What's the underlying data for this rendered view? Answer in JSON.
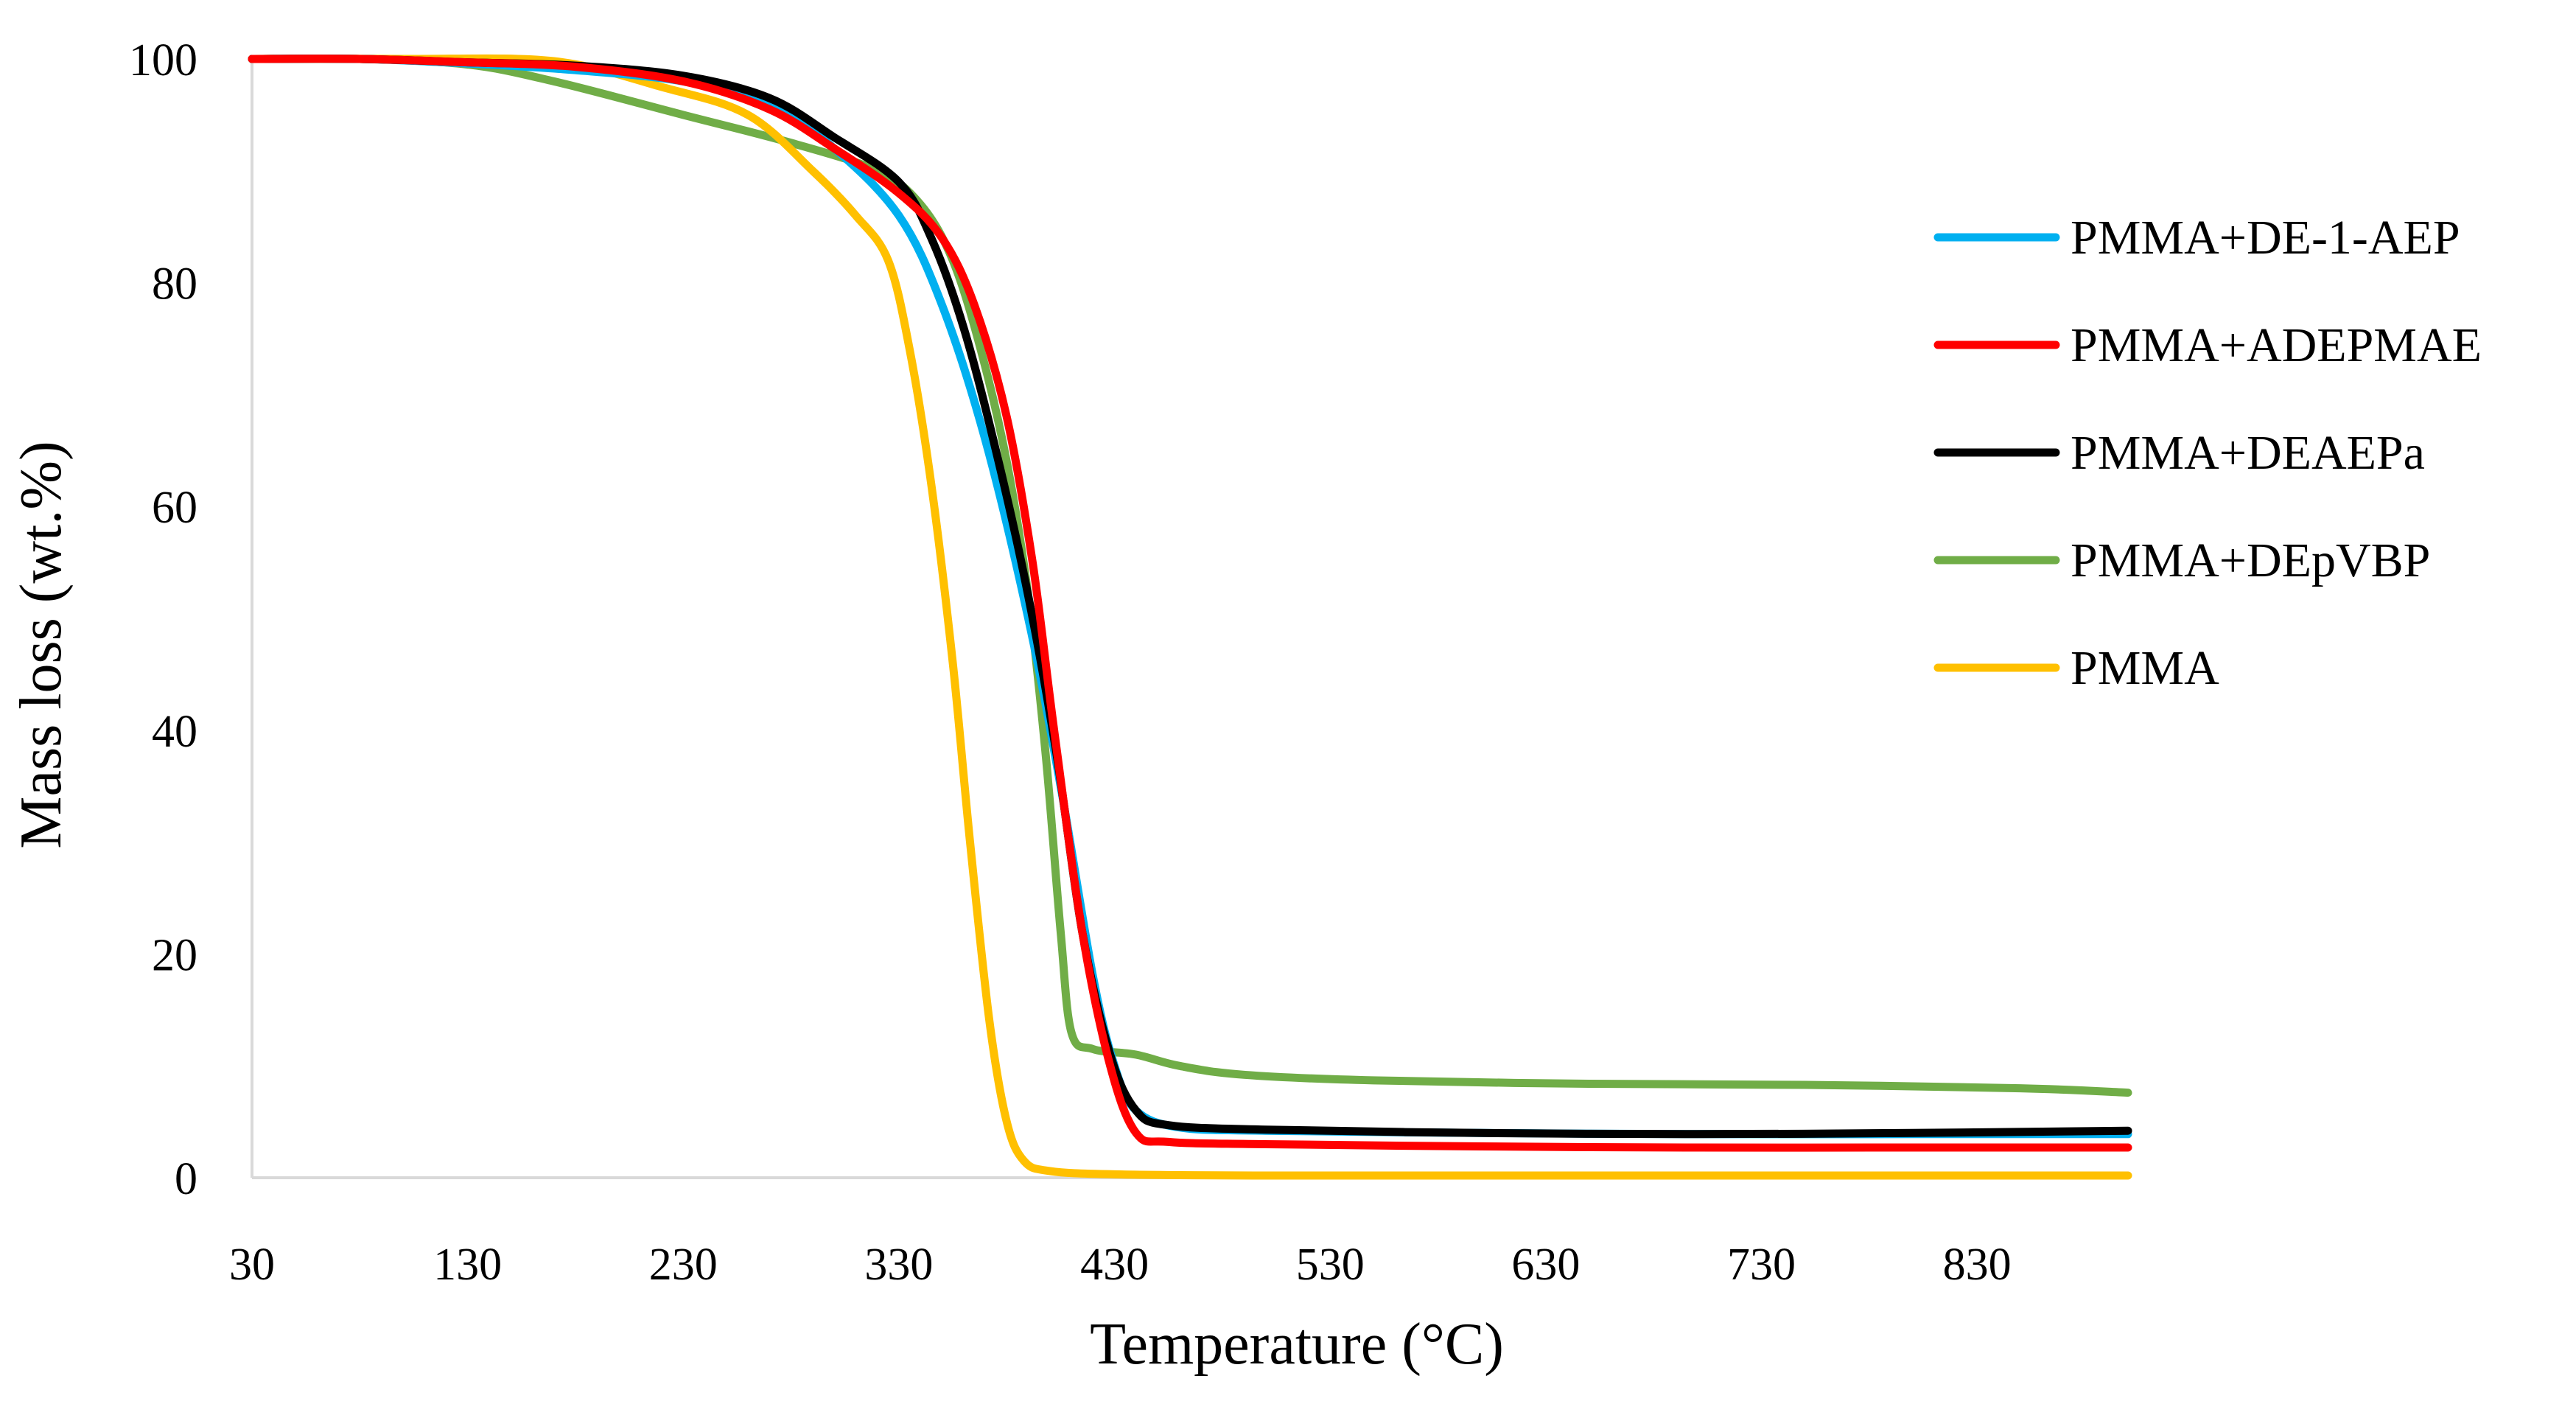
{
  "chart_data": {
    "type": "line",
    "title": "",
    "xlabel": "Temperature (°C)",
    "ylabel": "Mass loss (wt.%)",
    "xlim": [
      30,
      900
    ],
    "ylim": [
      0,
      100
    ],
    "x_ticks": [
      "30",
      "130",
      "230",
      "330",
      "430",
      "530",
      "630",
      "730",
      "830"
    ],
    "y_ticks": [
      "0",
      "20",
      "40",
      "60",
      "80",
      "100"
    ],
    "legend_position": "right",
    "grid": false,
    "colors": {
      "axis": "#d9d9d9"
    },
    "series": [
      {
        "name": "PMMA+DE-1-AEP",
        "color": "#00b0f0",
        "points": [
          [
            30,
            100
          ],
          [
            80,
            100
          ],
          [
            130,
            99.6
          ],
          [
            180,
            99
          ],
          [
            230,
            98
          ],
          [
            270,
            96
          ],
          [
            300,
            92
          ],
          [
            330,
            86
          ],
          [
            350,
            78
          ],
          [
            370,
            66
          ],
          [
            390,
            50
          ],
          [
            405,
            35
          ],
          [
            420,
            18
          ],
          [
            430,
            10
          ],
          [
            440,
            6
          ],
          [
            460,
            4.5
          ],
          [
            500,
            4.2
          ],
          [
            600,
            4
          ],
          [
            700,
            3.9
          ],
          [
            800,
            3.9
          ],
          [
            900,
            3.9
          ]
        ]
      },
      {
        "name": "PMMA+ADEPMAE",
        "color": "#ff0000",
        "points": [
          [
            30,
            100
          ],
          [
            80,
            100
          ],
          [
            130,
            99.7
          ],
          [
            180,
            99.3
          ],
          [
            230,
            98
          ],
          [
            270,
            95.5
          ],
          [
            300,
            92
          ],
          [
            330,
            88
          ],
          [
            350,
            84
          ],
          [
            365,
            78
          ],
          [
            380,
            68
          ],
          [
            392,
            55
          ],
          [
            402,
            40
          ],
          [
            415,
            22
          ],
          [
            428,
            10
          ],
          [
            440,
            4
          ],
          [
            455,
            3.2
          ],
          [
            500,
            3
          ],
          [
            600,
            2.8
          ],
          [
            700,
            2.7
          ],
          [
            800,
            2.7
          ],
          [
            900,
            2.7
          ]
        ]
      },
      {
        "name": "PMMA+DEAEPa",
        "color": "#000000",
        "points": [
          [
            30,
            100
          ],
          [
            80,
            100
          ],
          [
            130,
            99.7
          ],
          [
            180,
            99.4
          ],
          [
            230,
            98.5
          ],
          [
            270,
            96.5
          ],
          [
            300,
            93
          ],
          [
            330,
            89
          ],
          [
            345,
            84
          ],
          [
            360,
            76
          ],
          [
            375,
            65
          ],
          [
            390,
            52
          ],
          [
            403,
            38
          ],
          [
            415,
            22
          ],
          [
            428,
            11
          ],
          [
            440,
            6
          ],
          [
            455,
            4.7
          ],
          [
            500,
            4.3
          ],
          [
            600,
            4
          ],
          [
            700,
            3.9
          ],
          [
            800,
            4
          ],
          [
            900,
            4.2
          ]
        ]
      },
      {
        "name": "PMMA+DEpVBP",
        "color": "#70ad47",
        "points": [
          [
            30,
            100
          ],
          [
            80,
            100
          ],
          [
            130,
            99.5
          ],
          [
            170,
            98
          ],
          [
            230,
            95
          ],
          [
            280,
            92.5
          ],
          [
            320,
            90
          ],
          [
            340,
            87
          ],
          [
            355,
            82
          ],
          [
            368,
            74
          ],
          [
            380,
            64
          ],
          [
            390,
            52
          ],
          [
            398,
            38
          ],
          [
            405,
            22
          ],
          [
            410,
            13
          ],
          [
            420,
            11.5
          ],
          [
            440,
            11
          ],
          [
            460,
            10
          ],
          [
            490,
            9.2
          ],
          [
            550,
            8.7
          ],
          [
            650,
            8.4
          ],
          [
            750,
            8.3
          ],
          [
            850,
            8
          ],
          [
            900,
            7.6
          ]
        ]
      },
      {
        "name": "PMMA",
        "color": "#ffc000",
        "points": [
          [
            30,
            100
          ],
          [
            100,
            100
          ],
          [
            170,
            99.8
          ],
          [
            220,
            97.5
          ],
          [
            260,
            95
          ],
          [
            290,
            90
          ],
          [
            310,
            86
          ],
          [
            325,
            82
          ],
          [
            335,
            74
          ],
          [
            345,
            62
          ],
          [
            355,
            46
          ],
          [
            363,
            30
          ],
          [
            372,
            14
          ],
          [
            380,
            5
          ],
          [
            388,
            1.5
          ],
          [
            400,
            0.6
          ],
          [
            430,
            0.3
          ],
          [
            500,
            0.2
          ],
          [
            600,
            0.2
          ],
          [
            700,
            0.2
          ],
          [
            800,
            0.2
          ],
          [
            900,
            0.2
          ]
        ]
      }
    ]
  }
}
